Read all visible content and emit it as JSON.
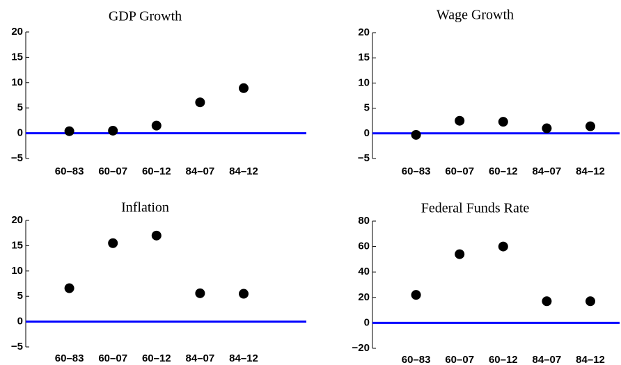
{
  "chart_data": [
    {
      "type": "dot",
      "title": "GDP Growth",
      "categories": [
        "60–83",
        "60–07",
        "60–12",
        "84–07",
        "84–12"
      ],
      "values": [
        0.4,
        0.5,
        1.5,
        6.1,
        8.9
      ],
      "color": "#000000",
      "zero_line_color": "#0000ff",
      "ylim": [
        -5,
        20
      ],
      "yticks": [
        {
          "value": -5,
          "label": "−5"
        },
        0,
        5,
        10,
        15,
        20
      ]
    },
    {
      "type": "dot",
      "title": "Wage Growth",
      "categories": [
        "60–83",
        "60–07",
        "60–12",
        "84–07",
        "84–12"
      ],
      "values": [
        -0.3,
        2.5,
        2.3,
        1.0,
        1.4
      ],
      "color": "#000000",
      "zero_line_color": "#0000ff",
      "ylim": [
        -5,
        20
      ],
      "yticks": [
        {
          "value": -5,
          "label": "−5"
        },
        0,
        5,
        10,
        15,
        20
      ]
    },
    {
      "type": "dot",
      "title": "Inflation",
      "categories": [
        "60–83",
        "60–07",
        "60–12",
        "84–07",
        "84–12"
      ],
      "values": [
        6.6,
        15.5,
        17.0,
        5.6,
        5.5
      ],
      "color": "#000000",
      "zero_line_color": "#0000ff",
      "ylim": [
        -5,
        20
      ],
      "yticks": [
        {
          "value": -5,
          "label": "−5"
        },
        0,
        5,
        10,
        15,
        20
      ]
    },
    {
      "type": "dot",
      "title": "Federal Funds Rate",
      "categories": [
        "60–83",
        "60–07",
        "60–12",
        "84–07",
        "84–12"
      ],
      "values": [
        22,
        54,
        60,
        17,
        17
      ],
      "color": "#000000",
      "zero_line_color": "#0000ff",
      "ylim": [
        -20,
        80
      ],
      "yticks": [
        {
          "value": -20,
          "label": "−20"
        },
        0,
        20,
        40,
        60,
        80
      ]
    }
  ]
}
